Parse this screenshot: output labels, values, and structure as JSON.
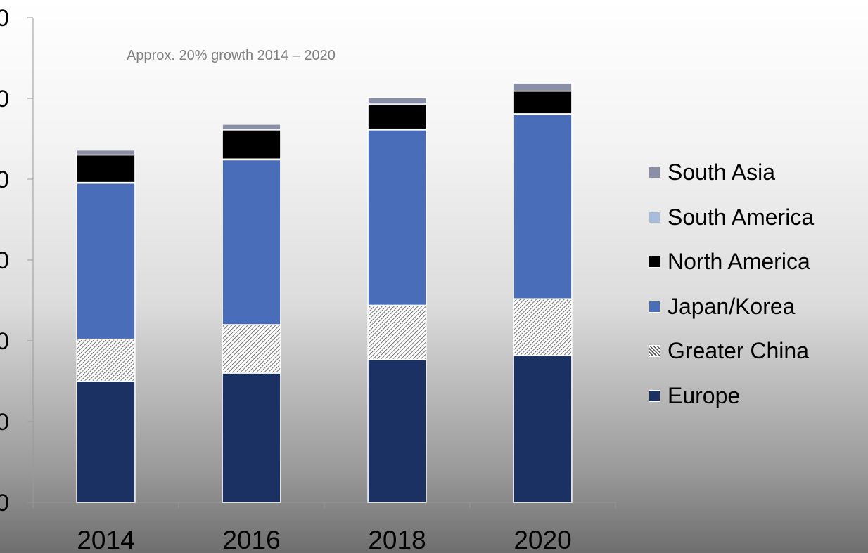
{
  "chart_data": {
    "type": "bar",
    "stacked": true,
    "categories": [
      "2014",
      "2016",
      "2018",
      "2020"
    ],
    "series": [
      {
        "name": "Europe",
        "values": [
          15,
          16,
          17.7,
          18.2
        ],
        "color": "#1b3164",
        "pattern": "solid"
      },
      {
        "name": "Greater China",
        "values": [
          5.2,
          6,
          6.7,
          7
        ],
        "color": "#ffffff",
        "pattern": "hatch"
      },
      {
        "name": "Japan/Korea",
        "values": [
          19.3,
          20.4,
          21.7,
          22.8
        ],
        "color": "#4a6dba",
        "pattern": "solid"
      },
      {
        "name": "South America",
        "values": [
          0.1,
          0.1,
          0.1,
          0.1
        ],
        "color": "#a8bce0",
        "pattern": "solid"
      },
      {
        "name": "North America",
        "values": [
          3.4,
          3.6,
          3.1,
          2.8
        ],
        "color": "#000000",
        "pattern": "solid"
      },
      {
        "name": "South Asia",
        "values": [
          0.6,
          0.7,
          0.8,
          1
        ],
        "color": "#8a8fa8",
        "pattern": "solid"
      }
    ],
    "legend_order": [
      "South Asia",
      "South America",
      "North America",
      "Japan/Korea",
      "Greater China",
      "Europe"
    ],
    "y_tick_labels": [
      "0",
      "0",
      "0",
      "0",
      "0",
      "0",
      "0"
    ],
    "ylim": [
      0,
      60
    ],
    "annotation": "Approx. 20% growth 2014 – 2020",
    "legend_position": "right",
    "grid": false
  }
}
